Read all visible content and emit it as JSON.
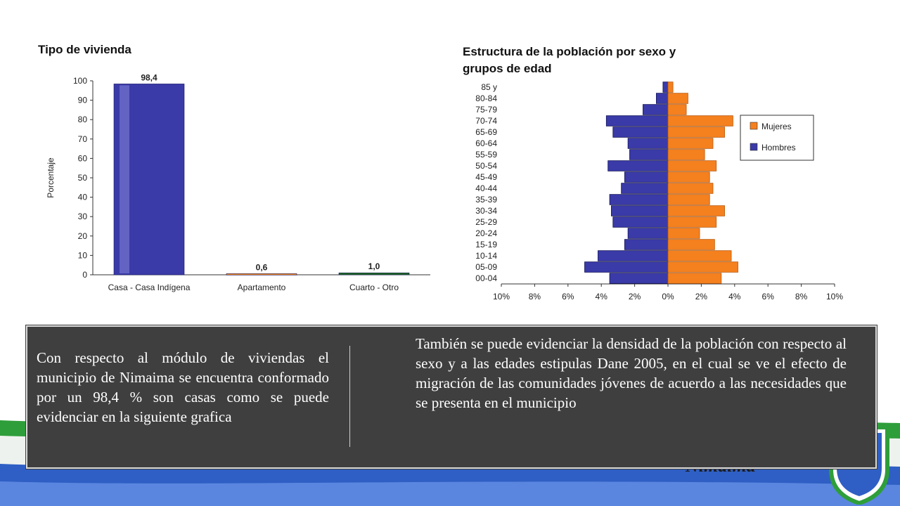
{
  "slide": {
    "para_left": "Con respecto al módulo de viviendas el municipio de Nimaima se encuentra conformado por un 98,4 % son casas como se puede evidenciar en la siguiente grafica",
    "para_right": "También se puede evidenciar la densidad de la población con respecto al sexo y a las edades estipulas Dane 2005, en el cual se ve el efecto de migración de las comunidades jóvenes de acuerdo a las necesidades que se presenta en el municipio",
    "brand_text": "Nimaima"
  },
  "colors": {
    "bar_casa": "#3a3aa8",
    "bar_apartamento": "#f08a1c",
    "bar_cuarto": "#1e6b1e",
    "hombres": "#3a3aa8",
    "mujeres": "#f5801e",
    "textbox": "#3f3f3f",
    "flag_green": "#2e9e3a",
    "flag_blue": "#2f5fc4"
  },
  "chart_data": [
    {
      "type": "bar",
      "title": "Tipo de vivienda",
      "ylabel": "Porcentaje",
      "categories": [
        "Casa - Casa Indígena",
        "Apartamento",
        "Cuarto - Otro"
      ],
      "values": [
        98.4,
        0.6,
        1.0
      ],
      "data_labels": [
        "98,4",
        "0,6",
        "1,0"
      ],
      "ylim": [
        0,
        100
      ],
      "yticks": [
        "0",
        "10",
        "20",
        "30",
        "40",
        "50",
        "60",
        "70",
        "80",
        "90",
        "100"
      ]
    },
    {
      "type": "bar",
      "orientation": "horizontal",
      "title": "Estructura de la población por sexo y grupos de edad",
      "categories": [
        "00-04",
        "05-09",
        "10-14",
        "15-19",
        "20-24",
        "25-29",
        "30-34",
        "35-39",
        "40-44",
        "45-49",
        "50-54",
        "55-59",
        "60-64",
        "65-69",
        "70-74",
        "75-79",
        "80-84",
        "85 y"
      ],
      "series": [
        {
          "name": "Hombres",
          "values": [
            -3.5,
            -5.0,
            -4.2,
            -2.6,
            -2.4,
            -3.3,
            -3.4,
            -3.5,
            -2.8,
            -2.6,
            -3.6,
            -2.3,
            -2.4,
            -3.3,
            -3.7,
            -1.5,
            -0.7,
            -0.3
          ]
        },
        {
          "name": "Mujeres",
          "values": [
            3.2,
            4.2,
            3.8,
            2.8,
            1.9,
            2.9,
            3.4,
            2.5,
            2.7,
            2.5,
            2.9,
            2.2,
            2.7,
            3.4,
            3.9,
            1.1,
            1.2,
            0.3
          ]
        }
      ],
      "xlim": [
        -10,
        10
      ],
      "xticks": [
        "10%",
        "8%",
        "6%",
        "4%",
        "2%",
        "0%",
        "2%",
        "4%",
        "6%",
        "8%",
        "10%"
      ],
      "legend": [
        "Mujeres",
        "Hombres"
      ],
      "legend_position": "right"
    }
  ]
}
